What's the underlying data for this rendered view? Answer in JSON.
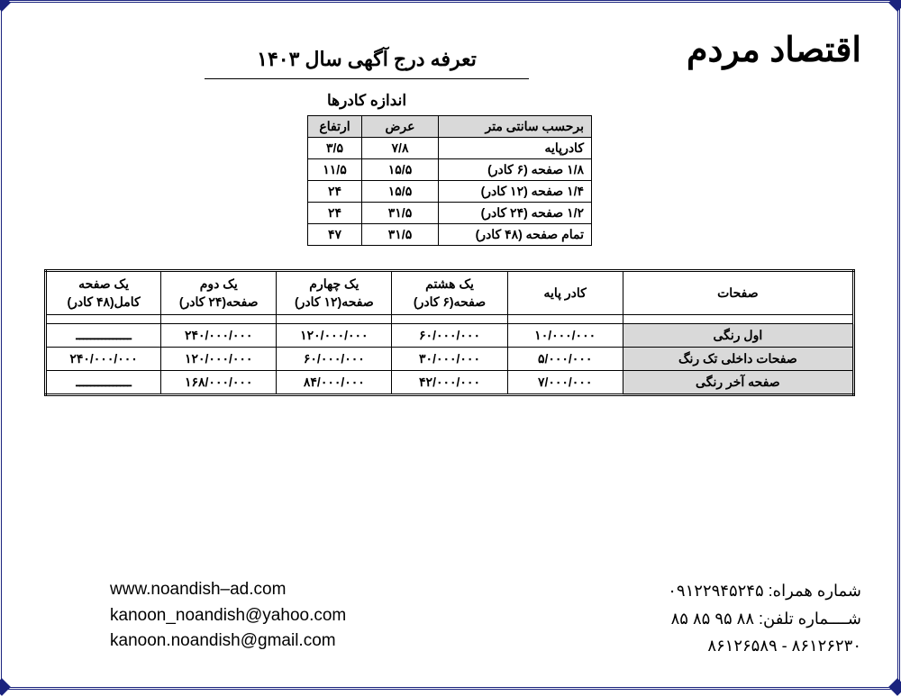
{
  "brand": "اقتصاد مردم",
  "main_title": "تعرفه درج آگهی سال ۱۴۰۳",
  "sizes_title": "اندازه کادرها",
  "sizes": {
    "headers": {
      "desc": "برحسب سانتی متر",
      "width": "عرض",
      "height": "ارتفاع"
    },
    "rows": [
      {
        "desc": "کادرپایه",
        "w": "۷/۸",
        "h": "۳/۵"
      },
      {
        "desc": "۱/۸ صفحه (۶ کادر)",
        "w": "۱۵/۵",
        "h": "۱۱/۵"
      },
      {
        "desc": "۱/۴ صفحه (۱۲ کادر)",
        "w": "۱۵/۵",
        "h": "۲۴"
      },
      {
        "desc": "۱/۲ صفحه (۲۴ کادر)",
        "w": "۳۱/۵",
        "h": "۲۴"
      },
      {
        "desc": "تمام صفحه (۴۸ کادر)",
        "w": "۳۱/۵",
        "h": "۴۷"
      }
    ]
  },
  "prices": {
    "headers": {
      "pages": "صفحات",
      "c1": "کادر پایه",
      "c2_a": "یک هشتم",
      "c2_b": "صفحه(۶ کادر)",
      "c3_a": "یک چهارم",
      "c3_b": "صفحه(۱۲ کادر)",
      "c4_a": "یک دوم",
      "c4_b": "صفحه(۲۴ کادر)",
      "c5_a": "یک صفحه",
      "c5_b": "کامل(۴۸ کادر)"
    },
    "rows": [
      {
        "label": "اول رنگی",
        "v": [
          "۱۰/۰۰۰/۰۰۰",
          "۶۰/۰۰۰/۰۰۰",
          "۱۲۰/۰۰۰/۰۰۰",
          "۲۴۰/۰۰۰/۰۰۰",
          "ـــــــــــــــ"
        ]
      },
      {
        "label": "صفحات داخلی تک رنگ",
        "v": [
          "۵/۰۰۰/۰۰۰",
          "۳۰/۰۰۰/۰۰۰",
          "۶۰/۰۰۰/۰۰۰",
          "۱۲۰/۰۰۰/۰۰۰",
          "۲۴۰/۰۰۰/۰۰۰"
        ]
      },
      {
        "label": "صفحه آخر رنگی",
        "v": [
          "۷/۰۰۰/۰۰۰",
          "۴۲/۰۰۰/۰۰۰",
          "۸۴/۰۰۰/۰۰۰",
          "۱۶۸/۰۰۰/۰۰۰",
          "ـــــــــــــــ"
        ]
      }
    ]
  },
  "footer": {
    "mobile_label": "شماره همراه:",
    "mobile": "۰۹۱۲۲۹۴۵۲۴۵",
    "phone_label": "شــــماره تلفن:",
    "phone1": "۸۸ ۹۵ ۸۵ ۸۵",
    "phone2": "۸۶۱۲۶۲۳۰ - ۸۶۱۲۶۵۸۹",
    "web": "www.noandish–ad.com",
    "email1": "kanoon_noandish@yahoo.com",
    "email2": "kanoon.noandish@gmail.com"
  }
}
